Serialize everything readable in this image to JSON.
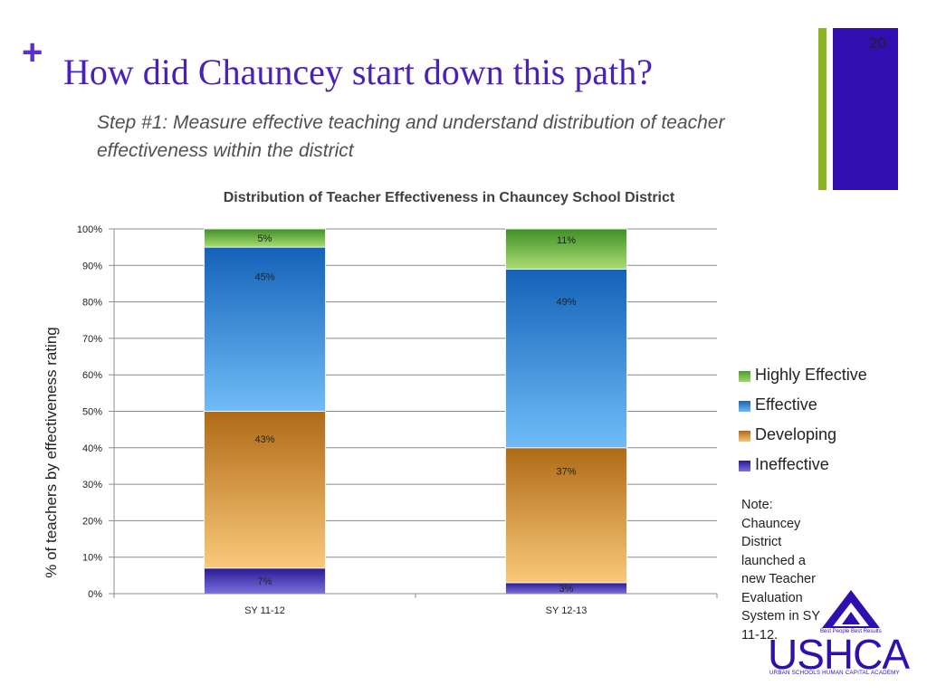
{
  "slide": {
    "plus": "+",
    "title": "How did Chauncey start down this path?",
    "subtitle": "Step #1: Measure effective teaching and understand distribution of teacher effectiveness within the district",
    "number": "20",
    "note": "Note: Chauncey District launched a new Teacher Evaluation System in SY 11-12.",
    "accent_green": "#8ab51e",
    "accent_blue": "#2f0fb0"
  },
  "logo": {
    "tagline": "Best People Best Results",
    "wordmark": "USHCA",
    "subtitle": "URBAN SCHOOLS HUMAN CAPITAL ACADEMY"
  },
  "chart_data": {
    "type": "bar",
    "stacked": true,
    "title": "Distribution of Teacher Effectiveness in Chauncey School District",
    "xlabel": "",
    "ylabel": "% of teachers by effectiveness rating",
    "ylim": [
      0,
      100
    ],
    "yticks": [
      "0%",
      "10%",
      "20%",
      "30%",
      "40%",
      "50%",
      "60%",
      "70%",
      "80%",
      "90%",
      "100%"
    ],
    "categories": [
      "SY 11-12",
      "SY 12-13"
    ],
    "series": [
      {
        "name": "Ineffective",
        "values": [
          7,
          3
        ],
        "labels": [
          "7%",
          "3%"
        ],
        "color": "#4a3fc2"
      },
      {
        "name": "Developing",
        "values": [
          43,
          37
        ],
        "labels": [
          "43%",
          "37%"
        ],
        "color": "#e3a24c"
      },
      {
        "name": "Effective",
        "values": [
          45,
          49
        ],
        "labels": [
          "45%",
          "49%"
        ],
        "color": "#3f8fe0"
      },
      {
        "name": "Highly Effective",
        "values": [
          5,
          11
        ],
        "labels": [
          "5%",
          "11%"
        ],
        "color": "#86c84a"
      }
    ],
    "legend": [
      "Highly Effective",
      "Effective",
      "Developing",
      "Ineffective"
    ],
    "legend_position": "right",
    "grid": true
  }
}
